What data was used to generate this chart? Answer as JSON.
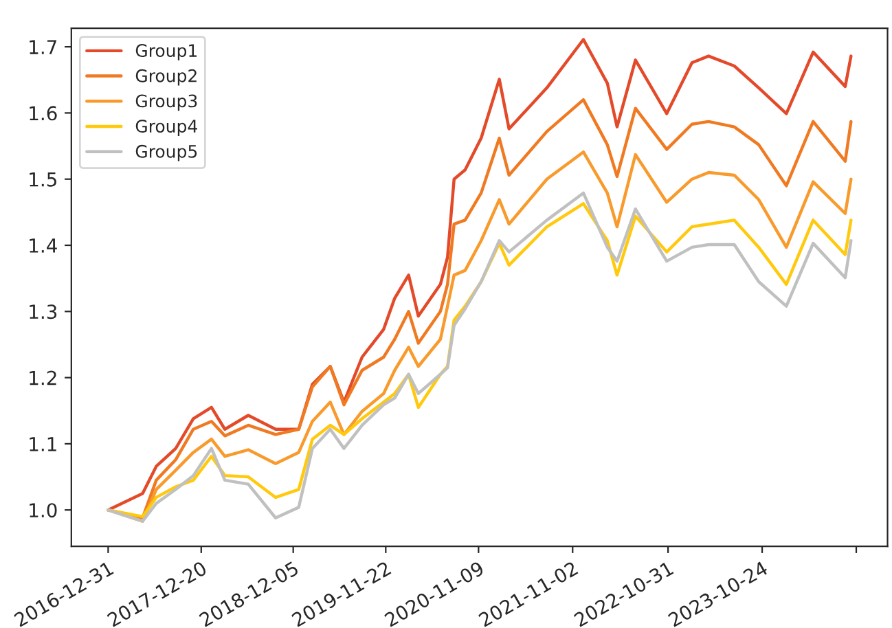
{
  "chart_data": {
    "type": "line",
    "x": [
      "2016-12-31",
      "2017-05-11",
      "2017-07-02",
      "2017-09-14",
      "2017-11-20",
      "2018-01-28",
      "2018-03-20",
      "2018-06-17",
      "2018-09-29",
      "2018-12-26",
      "2019-02-16",
      "2019-04-25",
      "2019-06-16",
      "2019-08-24",
      "2019-11-14",
      "2019-12-26",
      "2020-02-17",
      "2020-03-25",
      "2020-06-17",
      "2020-07-14",
      "2020-08-08",
      "2020-09-19",
      "2020-11-19",
      "2021-01-27",
      "2021-03-05",
      "2021-07-27",
      "2021-12-13",
      "2022-03-14",
      "2022-04-20",
      "2022-06-29",
      "2022-10-26",
      "2023-01-30",
      "2023-04-03",
      "2023-07-10",
      "2023-10-11",
      "2024-01-24",
      "2024-05-05",
      "2024-09-04",
      "2024-09-26"
    ],
    "series": [
      {
        "name": "Group1",
        "color": "#e34a2a",
        "values": [
          1.0,
          1.025,
          1.066,
          1.093,
          1.138,
          1.155,
          1.122,
          1.143,
          1.122,
          1.122,
          1.19,
          1.217,
          1.163,
          1.231,
          1.273,
          1.32,
          1.355,
          1.293,
          1.341,
          1.382,
          1.5,
          1.514,
          1.562,
          1.651,
          1.576,
          1.638,
          1.711,
          1.645,
          1.579,
          1.68,
          1.599,
          1.676,
          1.686,
          1.671,
          1.638,
          1.599,
          1.692,
          1.64,
          1.686
        ]
      },
      {
        "name": "Group2",
        "color": "#f07a22",
        "values": [
          1.0,
          0.988,
          1.045,
          1.076,
          1.122,
          1.134,
          1.112,
          1.128,
          1.114,
          1.122,
          1.186,
          1.217,
          1.159,
          1.211,
          1.231,
          1.258,
          1.3,
          1.252,
          1.3,
          1.341,
          1.432,
          1.438,
          1.479,
          1.562,
          1.506,
          1.572,
          1.62,
          1.552,
          1.504,
          1.607,
          1.545,
          1.583,
          1.587,
          1.579,
          1.552,
          1.49,
          1.587,
          1.527,
          1.587
        ]
      },
      {
        "name": "Group3",
        "color": "#f89a2c",
        "values": [
          1.0,
          0.983,
          1.031,
          1.06,
          1.087,
          1.107,
          1.081,
          1.091,
          1.07,
          1.087,
          1.134,
          1.163,
          1.114,
          1.149,
          1.176,
          1.211,
          1.246,
          1.217,
          1.258,
          1.308,
          1.355,
          1.362,
          1.407,
          1.469,
          1.432,
          1.5,
          1.541,
          1.479,
          1.428,
          1.537,
          1.465,
          1.5,
          1.51,
          1.506,
          1.469,
          1.397,
          1.496,
          1.448,
          1.5
        ]
      },
      {
        "name": "Group4",
        "color": "#ffc90e",
        "values": [
          1.0,
          0.99,
          1.019,
          1.035,
          1.045,
          1.081,
          1.052,
          1.05,
          1.019,
          1.031,
          1.107,
          1.128,
          1.114,
          1.138,
          1.163,
          1.176,
          1.205,
          1.155,
          1.205,
          1.217,
          1.287,
          1.308,
          1.345,
          1.403,
          1.37,
          1.428,
          1.463,
          1.407,
          1.355,
          1.444,
          1.39,
          1.428,
          1.432,
          1.438,
          1.397,
          1.341,
          1.438,
          1.386,
          1.438
        ]
      },
      {
        "name": "Group5",
        "color": "#c0c0c0",
        "values": [
          1.0,
          0.983,
          1.01,
          1.031,
          1.052,
          1.093,
          1.045,
          1.039,
          0.988,
          1.004,
          1.093,
          1.122,
          1.093,
          1.128,
          1.159,
          1.169,
          1.205,
          1.176,
          1.205,
          1.215,
          1.279,
          1.304,
          1.345,
          1.407,
          1.39,
          1.438,
          1.479,
          1.397,
          1.376,
          1.455,
          1.376,
          1.397,
          1.401,
          1.401,
          1.345,
          1.308,
          1.403,
          1.351,
          1.407
        ]
      }
    ],
    "xlim": [
      "2016-08-13",
      "2025-02-12"
    ],
    "xticks": [
      {
        "value": "2016-12-31",
        "label": "2016-12-31"
      },
      {
        "value": "2017-12-20",
        "label": "2017-12-20"
      },
      {
        "value": "2018-12-05",
        "label": "2018-12-05"
      },
      {
        "value": "2019-11-22",
        "label": "2019-11-22"
      },
      {
        "value": "2020-11-09",
        "label": "2020-11-09"
      },
      {
        "value": "2021-11-02",
        "label": "2021-11-02"
      },
      {
        "value": "2022-10-31",
        "label": "2022-10-31"
      },
      {
        "value": "2023-10-24",
        "label": "2023-10-24"
      },
      {
        "value": "2024-10-16",
        "label": null
      }
    ],
    "ylim": [
      0.945,
      1.728
    ],
    "yticks": [
      {
        "value": 1.0,
        "label": "1.0"
      },
      1.1,
      1.2,
      1.3,
      1.4,
      1.5,
      1.6,
      1.7
    ],
    "legend": "top left"
  }
}
